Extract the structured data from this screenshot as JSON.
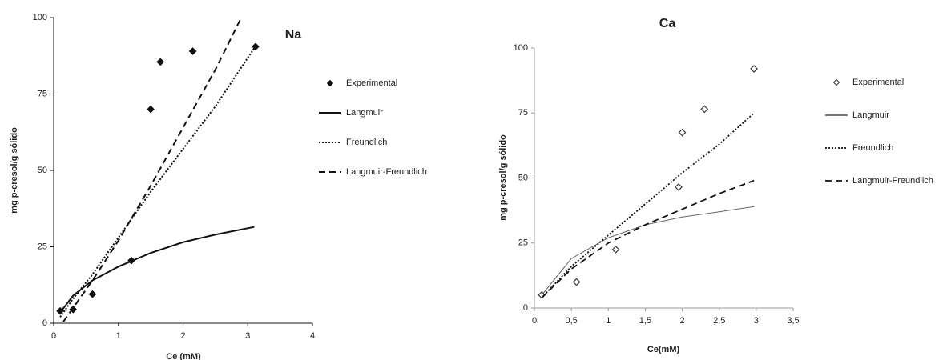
{
  "chart_data": [
    {
      "type": "line",
      "title": "Na",
      "xlabel": "Ce (mM)",
      "ylabel": "mg  p-cresol/g sólido",
      "xlim": [
        0,
        4
      ],
      "xticks": [
        0,
        1,
        2,
        3,
        4
      ],
      "ylim": [
        0,
        100
      ],
      "yticks": [
        0,
        25,
        50,
        75,
        100
      ],
      "series": [
        {
          "name": "Experimental",
          "color": "#111111",
          "style": "filled-diamond",
          "x": [
            0.1,
            0.3,
            0.6,
            1.2,
            1.5,
            1.65,
            2.15,
            3.12
          ],
          "values": [
            4,
            4.5,
            9.5,
            20.5,
            70,
            85.5,
            89,
            90.5
          ]
        },
        {
          "name": "Langmuir",
          "color": "#111111",
          "style": "solid",
          "x": [
            0.1,
            0.3,
            0.6,
            1.0,
            1.5,
            2.0,
            2.5,
            3.1
          ],
          "values": [
            3.5,
            9,
            14,
            18.5,
            23,
            26.5,
            29,
            31.5
          ]
        },
        {
          "name": "Freundlich",
          "color": "#111111",
          "style": "dotted",
          "x": [
            0.1,
            0.3,
            0.6,
            1.0,
            1.5,
            2.0,
            2.5,
            3.1
          ],
          "values": [
            2,
            8,
            16,
            28,
            43,
            57,
            71,
            90
          ]
        },
        {
          "name": "Langmuir-Freundlich",
          "color": "#111111",
          "style": "dashed",
          "x": [
            0.15,
            0.3,
            0.6,
            1.0,
            1.5,
            2.0,
            2.5,
            2.9
          ],
          "values": [
            0.5,
            5,
            14,
            27,
            45,
            64,
            83,
            100
          ]
        }
      ]
    },
    {
      "type": "line",
      "title": "Ca",
      "xlabel": "Ce(mM)",
      "ylabel": "mg  p-cresol/g sólido",
      "xlim": [
        0,
        3.5
      ],
      "xticks": [
        0,
        {
          "value": 0.5,
          "label": "0,5"
        },
        1,
        {
          "value": 1.5,
          "label": "1,5"
        },
        2,
        {
          "value": 2.5,
          "label": "2,5"
        },
        3,
        {
          "value": 3.5,
          "label": "3,5"
        }
      ],
      "ylim": [
        0,
        100
      ],
      "yticks": [
        0,
        25,
        50,
        75,
        100
      ],
      "series": [
        {
          "name": "Experimental",
          "color": "#333333",
          "style": "open-diamond",
          "x": [
            0.1,
            0.57,
            1.1,
            1.95,
            2.0,
            2.3,
            2.97
          ],
          "values": [
            5,
            10,
            22.5,
            46.5,
            67.5,
            76.5,
            92
          ]
        },
        {
          "name": "Langmuir",
          "color": "#666666",
          "style": "solid",
          "x": [
            0.1,
            0.5,
            1.0,
            1.5,
            2.0,
            2.5,
            2.97
          ],
          "values": [
            5,
            19,
            27,
            32,
            35,
            37,
            39
          ]
        },
        {
          "name": "Freundlich",
          "color": "#111111",
          "style": "dotted",
          "x": [
            0.1,
            0.5,
            1.0,
            1.5,
            2.0,
            2.5,
            2.97
          ],
          "values": [
            4,
            16,
            28,
            40,
            52,
            63,
            75
          ]
        },
        {
          "name": "Langmuir-Freundlich",
          "color": "#111111",
          "style": "dashed",
          "x": [
            0.1,
            0.5,
            1.0,
            1.5,
            2.0,
            2.5,
            2.97
          ],
          "values": [
            4,
            15,
            25,
            32,
            38,
            44,
            49
          ]
        }
      ]
    }
  ]
}
